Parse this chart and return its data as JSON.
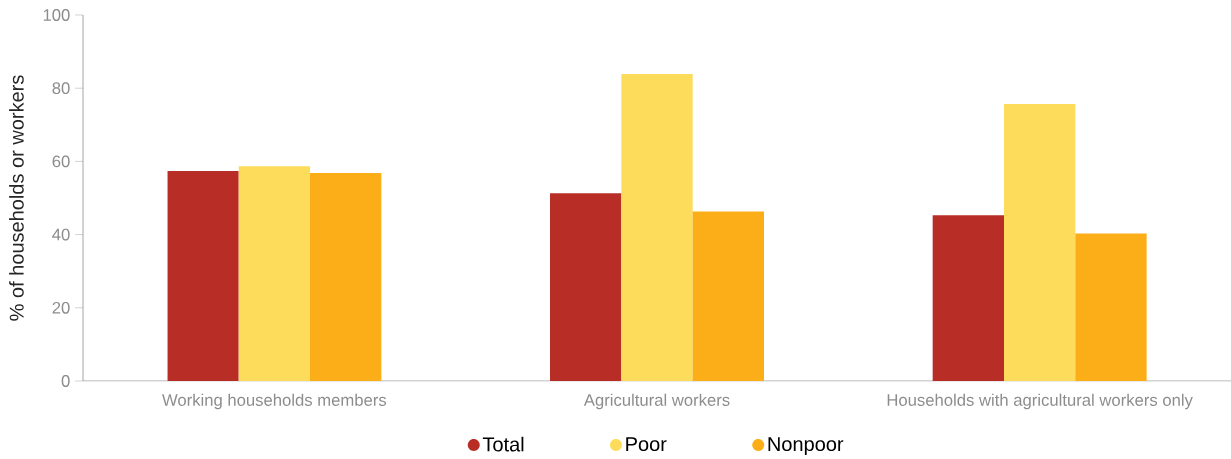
{
  "chart_data": {
    "type": "bar",
    "categories": [
      "Working households members",
      "Agricultural workers",
      "Households with agricultural workers only"
    ],
    "ylabel": "% of households or workers",
    "ylim": [
      0,
      100
    ],
    "yticks": [
      0,
      20,
      40,
      60,
      80,
      100
    ],
    "legend": "bottom",
    "series": [
      {
        "name": "Total",
        "color": "#b82e26",
        "values": [
          57.4,
          51.3,
          45.3
        ]
      },
      {
        "name": "Poor",
        "color": "#fddc5c",
        "values": [
          58.7,
          83.9,
          75.7
        ]
      },
      {
        "name": "Nonpoor",
        "color": "#fbae18",
        "values": [
          56.8,
          46.3,
          40.3
        ]
      }
    ]
  }
}
